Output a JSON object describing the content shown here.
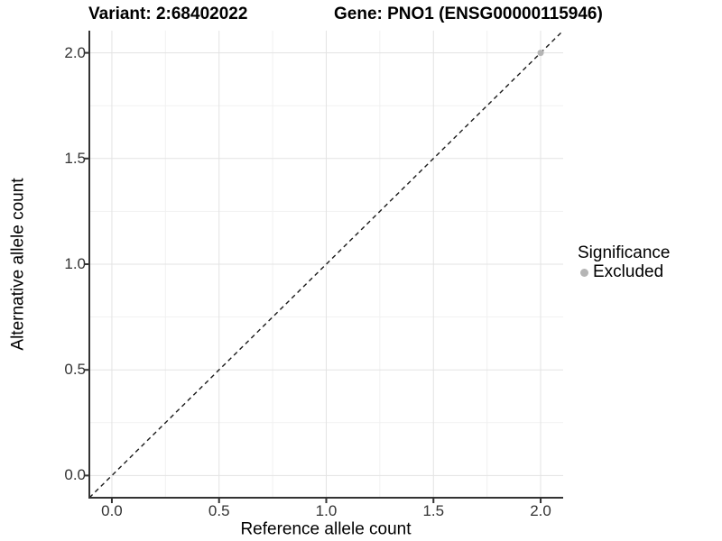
{
  "chart_data": {
    "type": "scatter",
    "title_left": "Variant: 2:68402022",
    "title_right": "Gene: PNO1 (ENSG00000115946)",
    "xlabel": "Reference allele count",
    "ylabel": "Alternative allele count",
    "xlim": [
      -0.105,
      2.105
    ],
    "ylim": [
      -0.105,
      2.105
    ],
    "x_ticks": {
      "values": [
        0,
        0.5,
        1,
        1.5,
        2
      ],
      "labels": [
        "0.0",
        "0.5",
        "1.0",
        "1.5",
        "2.0"
      ]
    },
    "y_ticks": {
      "values": [
        0,
        0.5,
        1,
        1.5,
        2
      ],
      "labels": [
        "0.0",
        "0.5",
        "1.0",
        "1.5",
        "2.0"
      ]
    },
    "grid": "major_and_minor",
    "minor_tick_values": [
      0.25,
      0.75,
      1.25,
      1.75
    ],
    "identity_line": {
      "equation": "y = x",
      "style": "dashed",
      "color": "#1a1a1a"
    },
    "series": [
      {
        "name": "Excluded",
        "color": "#b5b5b5",
        "points": [
          {
            "x": 2.0,
            "y": 2.0
          }
        ]
      }
    ],
    "legend": {
      "title": "Significance",
      "position": "right",
      "items": [
        {
          "label": "Excluded",
          "color": "#b5b5b5",
          "marker": "circle"
        }
      ]
    }
  },
  "colors": {
    "background": "#ffffff",
    "axis_line": "#333333",
    "tick_mark": "#333333",
    "tick_text": "#333333",
    "grid_major": "#e3e3e3",
    "grid_minor": "#f1f1f1",
    "dashed_line": "#1a1a1a",
    "point_gray": "#b5b5b5"
  }
}
